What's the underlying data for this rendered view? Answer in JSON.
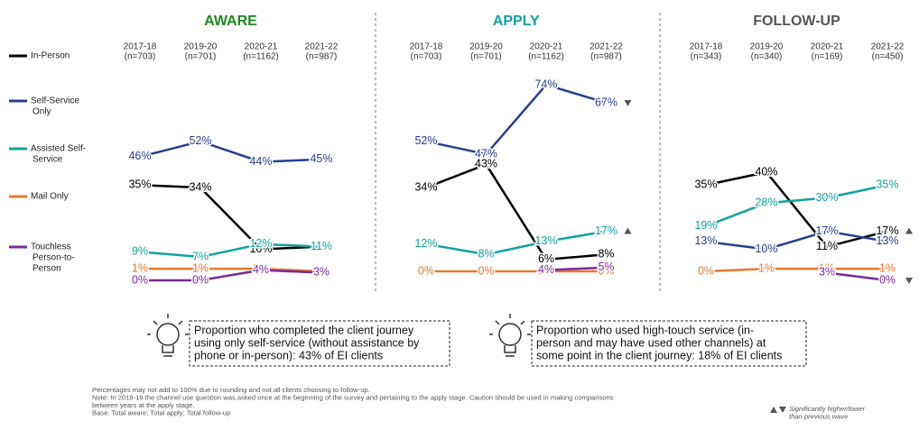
{
  "legend": [
    {
      "name": [
        "In-Person"
      ],
      "color": "#000000"
    },
    {
      "name": [
        "Self-Service",
        "Only"
      ],
      "color": "#2a3d8f"
    },
    {
      "name": [
        "Assisted Self-",
        "Service"
      ],
      "color": "#12a29c"
    },
    {
      "name": [
        "Mail Only"
      ],
      "color": "#e8772e"
    },
    {
      "name": [
        "Touchless",
        "Person-to-",
        "Person"
      ],
      "color": "#7a2a9a"
    }
  ],
  "chart_data": [
    {
      "type": "line",
      "title": "AWARE",
      "title_color": "#1a8a1a",
      "categories": [
        "2017-18",
        "2019-20",
        "2020-21",
        "2021-22"
      ],
      "n_labels": [
        "(n=703)",
        "(n=701)",
        "(n=1162)",
        "(n=987)"
      ],
      "ylim": [
        0,
        80
      ],
      "series": [
        {
          "values": [
            35,
            34,
            10,
            11
          ],
          "value_labels": [
            "35%",
            "34%",
            "10%",
            "11%"
          ],
          "significance": [
            null,
            null,
            null,
            null
          ]
        },
        {
          "values": [
            46,
            52,
            44,
            45
          ],
          "value_labels": [
            "46%",
            "52%",
            "44%",
            "45%"
          ],
          "significance": [
            null,
            null,
            null,
            null
          ]
        },
        {
          "values": [
            9,
            7,
            12,
            11
          ],
          "value_labels": [
            "9%",
            "7%",
            "12%",
            "11%"
          ],
          "significance": [
            null,
            null,
            null,
            null
          ]
        },
        {
          "values": [
            1,
            1,
            1,
            0
          ],
          "value_labels": [
            "1%",
            "1%",
            "1%",
            "0%"
          ],
          "significance": [
            null,
            null,
            null,
            null
          ]
        },
        {
          "values": [
            0,
            0,
            4,
            3
          ],
          "value_labels": [
            "0%",
            "0%",
            "4%",
            "3%"
          ],
          "significance": [
            null,
            null,
            null,
            null
          ]
        }
      ]
    },
    {
      "type": "line",
      "title": "APPLY",
      "title_color": "#14a0a0",
      "categories": [
        "2017-18",
        "2019-20",
        "2020-21",
        "2021-22"
      ],
      "n_labels": [
        "(n=703)",
        "(n=701)",
        "(n=1162)",
        "(n=987)"
      ],
      "ylim": [
        0,
        80
      ],
      "series": [
        {
          "values": [
            34,
            43,
            6,
            8
          ],
          "value_labels": [
            "34%",
            "43%",
            "6%",
            "8%"
          ],
          "significance": [
            null,
            null,
            null,
            null
          ]
        },
        {
          "values": [
            52,
            47,
            74,
            67
          ],
          "value_labels": [
            "52%",
            "47%",
            "74%",
            "67%"
          ],
          "significance": [
            null,
            null,
            null,
            "down"
          ]
        },
        {
          "values": [
            12,
            8,
            13,
            17
          ],
          "value_labels": [
            "12%",
            "8%",
            "13%",
            "17%"
          ],
          "significance": [
            null,
            null,
            null,
            "up"
          ]
        },
        {
          "values": [
            0,
            0,
            0,
            0
          ],
          "value_labels": [
            "0%",
            "0%",
            "0%",
            "0%"
          ],
          "significance": [
            null,
            null,
            null,
            null
          ]
        },
        {
          "values": [
            null,
            null,
            4,
            5
          ],
          "value_labels": [
            null,
            null,
            "4%",
            "5%"
          ],
          "significance": [
            null,
            null,
            null,
            null
          ]
        }
      ]
    },
    {
      "type": "line",
      "title": "FOLLOW-UP",
      "title_color": "#555555",
      "categories": [
        "2017-18",
        "2019-20",
        "2020-21",
        "2021-22"
      ],
      "n_labels": [
        "(n=343)",
        "(n=340)",
        "(n=169)",
        "(n=450)"
      ],
      "ylim": [
        0,
        80
      ],
      "series": [
        {
          "values": [
            35,
            40,
            11,
            17
          ],
          "value_labels": [
            "35%",
            "40%",
            "11%",
            "17%"
          ],
          "significance": [
            null,
            null,
            null,
            "up"
          ]
        },
        {
          "values": [
            13,
            10,
            17,
            13
          ],
          "value_labels": [
            "13%",
            "10%",
            "17%",
            "13%"
          ],
          "significance": [
            null,
            null,
            null,
            null
          ]
        },
        {
          "values": [
            19,
            28,
            30,
            35
          ],
          "value_labels": [
            "19%",
            "28%",
            "30%",
            "35%"
          ],
          "significance": [
            null,
            null,
            null,
            null
          ]
        },
        {
          "values": [
            0,
            1,
            1,
            1
          ],
          "value_labels": [
            "0%",
            "1%",
            "1%",
            "1%"
          ],
          "significance": [
            null,
            null,
            null,
            null
          ]
        },
        {
          "values": [
            null,
            null,
            3,
            0
          ],
          "value_labels": [
            null,
            null,
            "3%",
            "0%"
          ],
          "significance": [
            null,
            null,
            null,
            "down"
          ]
        }
      ]
    }
  ],
  "callouts": [
    [
      "Proportion who completed the client journey",
      "using only self-service (without assistance by",
      "phone or in-person): 43% of EI clients"
    ],
    [
      "Proportion who used high-touch service (in-",
      "person and may have used other channels) at",
      "some point in the client journey: 18% of EI clients"
    ]
  ],
  "notes": [
    "Percentages may not add to 100% due to rounding and not all clients choosing to follow-up.",
    "Note: In 2018-19 the channel use question was asked once at the beginning of the survey and pertaining to the apply stage. Caution should be used in making comparisons",
    "between years at the apply stage.",
    "Base: Total aware; Total apply; Total follow-up"
  ],
  "significance_legend": [
    "Significantly higher/lower",
    "than previous wave"
  ]
}
